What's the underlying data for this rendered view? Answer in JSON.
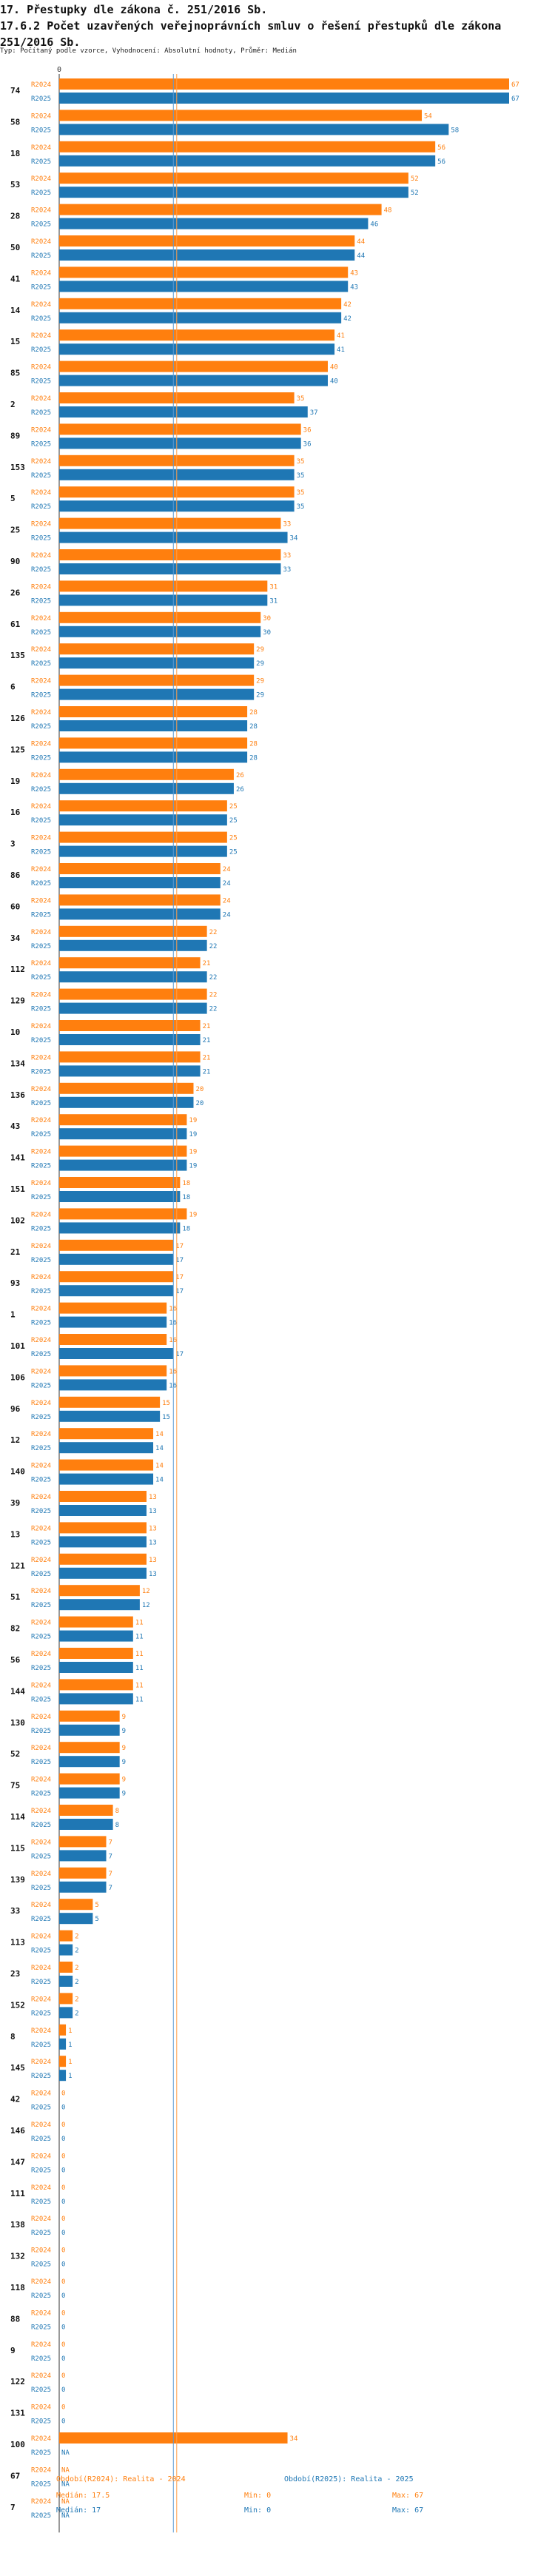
{
  "header": {
    "title": "17. Přestupky dle zákona č. 251/2016 Sb.",
    "subtitle": "17.6.2 Počet uzavřených veřejnoprávních smluv o řešení přestupků dle zákona 251/2016 Sb.",
    "meta": "Typ: Počítaný podle vzorce, Vyhodnocení: Absolutní hodnoty, Průměr: Medián"
  },
  "colors": {
    "r2024": "#ff7f0e",
    "r2025": "#1f77b4",
    "median2024_line": "#ff9f4a",
    "median2025_line": "#5b9bd5",
    "axis": "#333333"
  },
  "chart_data": {
    "type": "bar",
    "orientation": "horizontal",
    "xlim": [
      0,
      67
    ],
    "axis_tick": "0",
    "categories": [
      "74",
      "58",
      "18",
      "53",
      "28",
      "50",
      "41",
      "14",
      "15",
      "85",
      "2",
      "89",
      "153",
      "5",
      "25",
      "90",
      "26",
      "61",
      "135",
      "6",
      "126",
      "125",
      "19",
      "16",
      "3",
      "86",
      "60",
      "34",
      "112",
      "129",
      "10",
      "134",
      "136",
      "43",
      "141",
      "151",
      "102",
      "21",
      "93",
      "1",
      "101",
      "106",
      "96",
      "12",
      "140",
      "39",
      "13",
      "121",
      "51",
      "82",
      "56",
      "144",
      "130",
      "52",
      "75",
      "114",
      "115",
      "139",
      "33",
      "113",
      "23",
      "152",
      "8",
      "145",
      "42",
      "146",
      "147",
      "111",
      "138",
      "132",
      "118",
      "88",
      "9",
      "122",
      "131",
      "100",
      "67",
      "7"
    ],
    "series": [
      {
        "name": "R2024",
        "values": [
          67,
          54,
          56,
          52,
          48,
          44,
          43,
          42,
          41,
          40,
          35,
          36,
          35,
          35,
          33,
          33,
          31,
          30,
          29,
          29,
          28,
          28,
          26,
          25,
          25,
          24,
          24,
          22,
          21,
          22,
          21,
          21,
          20,
          19,
          19,
          18,
          19,
          17,
          17,
          16,
          16,
          16,
          15,
          14,
          14,
          13,
          13,
          13,
          12,
          11,
          11,
          11,
          9,
          9,
          9,
          8,
          7,
          7,
          5,
          2,
          2,
          2,
          1,
          1,
          0,
          0,
          0,
          0,
          0,
          0,
          0,
          0,
          0,
          0,
          0,
          34,
          null,
          null
        ],
        "labels": [
          "67",
          "54",
          "56",
          "52",
          "48",
          "44",
          "43",
          "42",
          "41",
          "40",
          "35",
          "36",
          "35",
          "35",
          "33",
          "33",
          "31",
          "30",
          "29",
          "29",
          "28",
          "28",
          "26",
          "25",
          "25",
          "24",
          "24",
          "22",
          "21",
          "22",
          "21",
          "21",
          "20",
          "19",
          "19",
          "18",
          "19",
          "17",
          "17",
          "16",
          "16",
          "16",
          "15",
          "14",
          "14",
          "13",
          "13",
          "13",
          "12",
          "11",
          "11",
          "11",
          "9",
          "9",
          "9",
          "8",
          "7",
          "7",
          "5",
          "2",
          "2",
          "2",
          "1",
          "1",
          "0",
          "0",
          "0",
          "0",
          "0",
          "0",
          "0",
          "0",
          "0",
          "0",
          "0",
          "34",
          "NA",
          "NA"
        ]
      },
      {
        "name": "R2025",
        "values": [
          67,
          58,
          56,
          52,
          46,
          44,
          43,
          42,
          41,
          40,
          37,
          36,
          35,
          35,
          34,
          33,
          31,
          30,
          29,
          29,
          28,
          28,
          26,
          25,
          25,
          24,
          24,
          22,
          22,
          22,
          21,
          21,
          20,
          19,
          19,
          18,
          18,
          17,
          17,
          16,
          17,
          16,
          15,
          14,
          14,
          13,
          13,
          13,
          12,
          11,
          11,
          11,
          9,
          9,
          9,
          8,
          7,
          7,
          5,
          2,
          2,
          2,
          1,
          1,
          0,
          0,
          0,
          0,
          0,
          0,
          0,
          0,
          0,
          0,
          0,
          null,
          null,
          null
        ],
        "labels": [
          "67",
          "58",
          "56",
          "52",
          "46",
          "44",
          "43",
          "42",
          "41",
          "40",
          "37",
          "36",
          "35",
          "35",
          "34",
          "33",
          "31",
          "30",
          "29",
          "29",
          "28",
          "28",
          "26",
          "25",
          "25",
          "24",
          "24",
          "22",
          "22",
          "22",
          "21",
          "21",
          "20",
          "19",
          "19",
          "18",
          "18",
          "17",
          "17",
          "16",
          "17",
          "16",
          "15",
          "14",
          "14",
          "13",
          "13",
          "13",
          "12",
          "11",
          "11",
          "11",
          "9",
          "9",
          "9",
          "8",
          "7",
          "7",
          "5",
          "2",
          "2",
          "2",
          "1",
          "1",
          "0",
          "0",
          "0",
          "0",
          "0",
          "0",
          "0",
          "0",
          "0",
          "0",
          "0",
          "NA",
          "NA",
          "NA"
        ]
      }
    ],
    "median": {
      "R2024": 17.5,
      "R2025": 17
    }
  },
  "legend": {
    "r2024": {
      "label": "Období(R2024): Realita - 2024",
      "median": "Medián: 17.5",
      "min": "Min: 0",
      "max": "Max: 67"
    },
    "r2025": {
      "label": "Období(R2025): Realita - 2025",
      "median": "Medián: 17",
      "min": "Min: 0",
      "max": "Max: 67"
    }
  }
}
